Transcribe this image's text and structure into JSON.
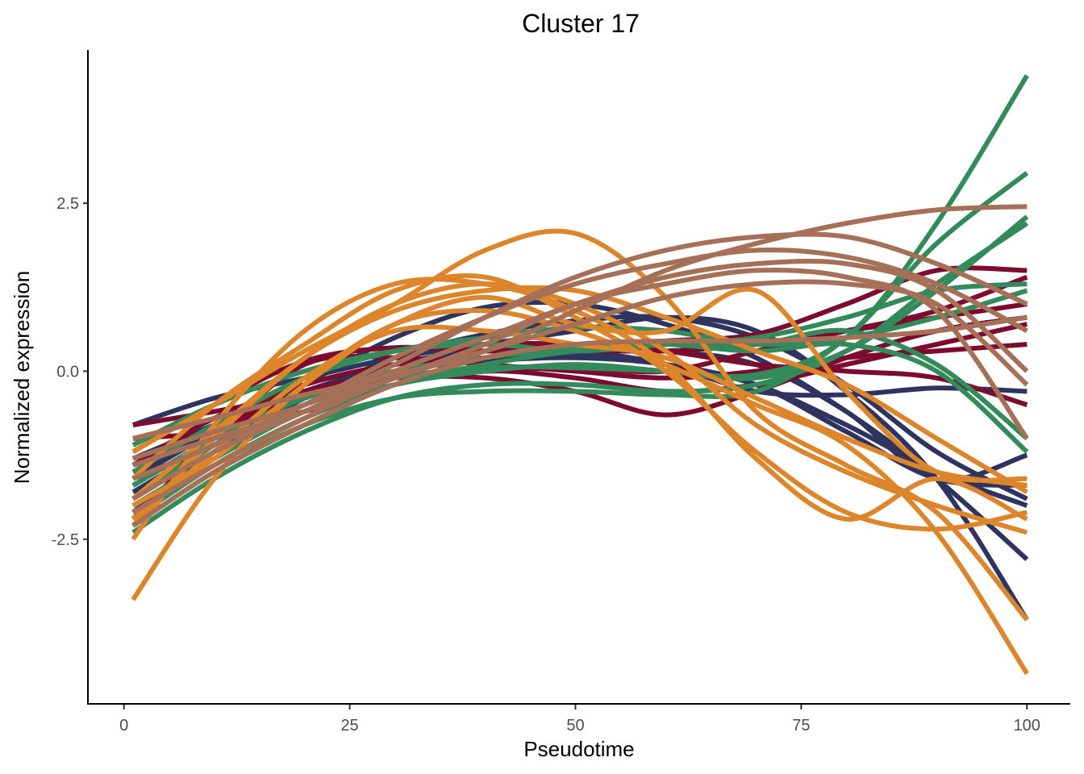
{
  "chart_data": {
    "type": "line",
    "title": "Cluster 17",
    "xlabel": "Pseudotime",
    "ylabel": "Normalized expression",
    "xlim": [
      -3.9,
      104.8
    ],
    "ylim": [
      -4.95,
      4.78
    ],
    "xticks": [
      0,
      25,
      50,
      75,
      100
    ],
    "xtick_labels": [
      "0",
      "25",
      "50",
      "75",
      "100"
    ],
    "yticks": [
      2.5,
      0,
      -2.5
    ],
    "ytick_labels": [
      "2.5",
      "0.0",
      "-2.5"
    ],
    "grid": false,
    "legend": "none",
    "colors": {
      "navy": "#2e3360",
      "crimson": "#7d0a2f",
      "green": "#338a5a",
      "orange": "#dc852b",
      "brown": "#a66f57"
    },
    "series": [
      {
        "color": "navy",
        "x": [
          1,
          10,
          20,
          30,
          40,
          50,
          60,
          70,
          80,
          90,
          100
        ],
        "y": [
          -0.8,
          -0.4,
          -0.1,
          0.2,
          0.4,
          0.6,
          0.8,
          0.6,
          -0.3,
          -1.6,
          -3.7
        ]
      },
      {
        "color": "navy",
        "x": [
          1,
          10,
          20,
          30,
          40,
          50,
          60,
          70,
          80,
          90,
          100
        ],
        "y": [
          -1.6,
          -0.9,
          -0.2,
          0.5,
          0.95,
          1.0,
          0.7,
          0.2,
          -0.6,
          -1.6,
          -2.8
        ]
      },
      {
        "color": "navy",
        "x": [
          1,
          10,
          20,
          30,
          40,
          50,
          60,
          70,
          80,
          90,
          100
        ],
        "y": [
          -1.9,
          -1.1,
          -0.4,
          0.2,
          0.55,
          0.75,
          0.8,
          0.5,
          -0.2,
          -1.2,
          -1.9
        ]
      },
      {
        "color": "navy",
        "x": [
          1,
          10,
          20,
          30,
          40,
          50,
          60,
          70,
          80,
          90,
          100
        ],
        "y": [
          -1.3,
          -0.8,
          -0.3,
          0.1,
          0.3,
          0.4,
          0.3,
          0.1,
          -0.6,
          -1.6,
          -1.25
        ]
      },
      {
        "color": "navy",
        "x": [
          1,
          10,
          20,
          30,
          40,
          50,
          60,
          70,
          80,
          90,
          100
        ],
        "y": [
          -1.5,
          -0.9,
          -0.4,
          0.0,
          0.15,
          0.2,
          0.1,
          -0.2,
          -0.9,
          -1.6,
          -1.7
        ]
      },
      {
        "color": "navy",
        "x": [
          1,
          10,
          20,
          30,
          40,
          50,
          60,
          70,
          80,
          90,
          100
        ],
        "y": [
          -2.1,
          -1.2,
          -0.4,
          0.1,
          0.3,
          0.3,
          0.1,
          -0.3,
          -0.35,
          -0.25,
          -0.3
        ]
      },
      {
        "color": "navy",
        "x": [
          1,
          10,
          20,
          30,
          40,
          50,
          60,
          70,
          80,
          90,
          100
        ],
        "y": [
          -1.8,
          -1.1,
          -0.5,
          0.0,
          0.2,
          0.25,
          0.1,
          -0.2,
          -0.8,
          -1.5,
          -2.0
        ]
      },
      {
        "color": "crimson",
        "x": [
          1,
          10,
          20,
          30,
          40,
          50,
          60,
          70,
          80,
          90,
          100
        ],
        "y": [
          -0.8,
          -0.6,
          -0.35,
          -0.1,
          0.0,
          0.05,
          0.0,
          0.3,
          0.6,
          0.9,
          1.4
        ]
      },
      {
        "color": "crimson",
        "x": [
          1,
          10,
          20,
          30,
          40,
          50,
          60,
          70,
          80,
          90,
          100
        ],
        "y": [
          -1.2,
          -0.5,
          0.15,
          0.35,
          0.3,
          0.35,
          0.45,
          0.55,
          1.0,
          1.5,
          1.5
        ]
      },
      {
        "color": "crimson",
        "x": [
          1,
          10,
          20,
          30,
          40,
          50,
          60,
          70,
          80,
          90,
          100
        ],
        "y": [
          -1.4,
          -0.7,
          -0.2,
          0.1,
          0.2,
          0.3,
          0.3,
          0.4,
          0.6,
          0.8,
          1.0
        ]
      },
      {
        "color": "crimson",
        "x": [
          1,
          10,
          20,
          30,
          40,
          50,
          60,
          70,
          80,
          90,
          100
        ],
        "y": [
          -1.7,
          -1.0,
          -0.3,
          -0.1,
          -0.1,
          -0.3,
          -0.65,
          -0.3,
          0.2,
          0.6,
          0.8
        ]
      },
      {
        "color": "crimson",
        "x": [
          1,
          10,
          20,
          30,
          40,
          50,
          60,
          70,
          80,
          90,
          100
        ],
        "y": [
          -2.2,
          -1.0,
          0.1,
          0.2,
          0.1,
          0.0,
          -0.1,
          0.0,
          0.2,
          0.3,
          0.4
        ]
      },
      {
        "color": "crimson",
        "x": [
          1,
          10,
          20,
          30,
          40,
          50,
          60,
          70,
          80,
          90,
          100
        ],
        "y": [
          -1.0,
          -0.9,
          -0.6,
          -0.2,
          0.0,
          -0.1,
          -0.3,
          -0.2,
          0.1,
          0.4,
          0.7
        ]
      },
      {
        "color": "crimson",
        "x": [
          1,
          10,
          20,
          30,
          40,
          50,
          60,
          70,
          80,
          90,
          100
        ],
        "y": [
          -1.9,
          -1.0,
          -0.1,
          0.3,
          0.4,
          0.4,
          0.3,
          0.1,
          0.0,
          -0.1,
          -0.5
        ]
      },
      {
        "color": "green",
        "x": [
          1,
          10,
          20,
          30,
          40,
          50,
          60,
          70,
          80,
          90,
          100
        ],
        "y": [
          -1.9,
          -1.1,
          -0.5,
          -0.1,
          0.05,
          0.05,
          0.0,
          -0.05,
          0.5,
          2.2,
          4.4
        ]
      },
      {
        "color": "green",
        "x": [
          1,
          10,
          20,
          30,
          40,
          50,
          60,
          70,
          80,
          90,
          100
        ],
        "y": [
          -2.3,
          -1.5,
          -0.8,
          -0.4,
          -0.3,
          -0.3,
          -0.35,
          -0.3,
          0.5,
          1.9,
          2.95
        ]
      },
      {
        "color": "green",
        "x": [
          1,
          10,
          20,
          30,
          40,
          50,
          60,
          70,
          80,
          90,
          100
        ],
        "y": [
          -2.0,
          -1.3,
          -0.6,
          -0.2,
          0.0,
          0.1,
          0.0,
          -0.1,
          0.3,
          1.2,
          2.3
        ]
      },
      {
        "color": "green",
        "x": [
          1,
          10,
          20,
          30,
          40,
          50,
          60,
          70,
          80,
          90,
          100
        ],
        "y": [
          -1.1,
          -0.5,
          0.0,
          0.3,
          0.4,
          0.3,
          0.4,
          0.5,
          0.8,
          1.2,
          1.3
        ]
      },
      {
        "color": "green",
        "x": [
          1,
          10,
          20,
          30,
          40,
          50,
          60,
          70,
          80,
          90,
          100
        ],
        "y": [
          -1.5,
          -0.8,
          -0.1,
          0.3,
          0.5,
          0.65,
          0.6,
          0.4,
          0.5,
          0.8,
          1.2
        ]
      },
      {
        "color": "green",
        "x": [
          1,
          10,
          20,
          30,
          40,
          50,
          60,
          70,
          80,
          90,
          100
        ],
        "y": [
          -2.2,
          -1.4,
          -0.7,
          -0.2,
          0.1,
          0.3,
          0.4,
          0.4,
          0.6,
          0.1,
          -1.0
        ]
      },
      {
        "color": "green",
        "x": [
          1,
          10,
          20,
          30,
          40,
          50,
          60,
          70,
          80,
          90,
          100
        ],
        "y": [
          -1.7,
          -1.0,
          -0.4,
          0.0,
          0.2,
          0.35,
          0.4,
          0.3,
          0.4,
          0.0,
          -1.2
        ]
      },
      {
        "color": "green",
        "x": [
          1,
          10,
          20,
          30,
          40,
          50,
          60,
          70,
          80,
          90,
          100
        ],
        "y": [
          -2.4,
          -1.6,
          -0.9,
          -0.4,
          -0.2,
          -0.2,
          -0.3,
          -0.2,
          0.3,
          1.3,
          2.2
        ]
      },
      {
        "color": "orange",
        "x": [
          1,
          10,
          20,
          30,
          40,
          50,
          60,
          70,
          80,
          90,
          100
        ],
        "y": [
          -3.4,
          -1.6,
          -0.2,
          0.7,
          0.9,
          0.6,
          0.1,
          -0.5,
          -1.1,
          -2.4,
          -4.5
        ]
      },
      {
        "color": "orange",
        "x": [
          1,
          10,
          20,
          30,
          40,
          50,
          60,
          70,
          80,
          90,
          100
        ],
        "y": [
          -2.5,
          -0.8,
          0.6,
          1.3,
          1.3,
          0.9,
          0.1,
          -1.3,
          -2.2,
          -1.6,
          -2.2
        ]
      },
      {
        "color": "orange",
        "x": [
          1,
          10,
          20,
          30,
          40,
          50,
          60,
          70,
          80,
          90,
          100
        ],
        "y": [
          -1.2,
          -0.5,
          0.3,
          1.0,
          1.8,
          2.05,
          1.1,
          -0.6,
          -1.4,
          -2.1,
          -3.7
        ]
      },
      {
        "color": "orange",
        "x": [
          1,
          10,
          20,
          30,
          40,
          50,
          60,
          70,
          80,
          90,
          100
        ],
        "y": [
          -2.3,
          -1.0,
          0.2,
          1.0,
          1.3,
          1.0,
          0.3,
          -0.8,
          -1.5,
          -2.0,
          -2.4
        ]
      },
      {
        "color": "orange",
        "x": [
          1,
          10,
          20,
          30,
          40,
          50,
          60,
          70,
          80,
          90,
          100
        ],
        "y": [
          -2.0,
          -1.3,
          -0.2,
          0.7,
          1.1,
          0.7,
          0.6,
          1.2,
          -0.3,
          -1.5,
          -1.6
        ]
      },
      {
        "color": "orange",
        "x": [
          1,
          10,
          20,
          30,
          40,
          50,
          60,
          70,
          80,
          90,
          100
        ],
        "y": [
          -2.2,
          -1.2,
          -0.1,
          0.6,
          0.6,
          0.4,
          0.2,
          -0.4,
          -1.0,
          -1.5,
          -1.7
        ]
      },
      {
        "color": "orange",
        "x": [
          1,
          10,
          20,
          30,
          40,
          50,
          60,
          70,
          80,
          90,
          100
        ],
        "y": [
          -1.6,
          -0.5,
          0.4,
          1.2,
          1.4,
          0.8,
          0.0,
          -1.2,
          -2.1,
          -2.35,
          -2.1
        ]
      },
      {
        "color": "orange",
        "x": [
          1,
          10,
          20,
          30,
          40,
          50,
          60,
          70,
          80,
          90,
          100
        ],
        "y": [
          -1.9,
          -0.9,
          0.2,
          0.9,
          1.2,
          1.2,
          0.8,
          0.3,
          -0.2,
          -1.0,
          -1.8
        ]
      },
      {
        "color": "brown",
        "x": [
          1,
          10,
          20,
          30,
          40,
          50,
          60,
          70,
          80,
          90,
          100
        ],
        "y": [
          -1.0,
          -0.7,
          -0.35,
          -0.05,
          0.3,
          0.9,
          1.5,
          1.9,
          2.2,
          2.4,
          2.45
        ]
      },
      {
        "color": "brown",
        "x": [
          1,
          10,
          20,
          30,
          40,
          50,
          60,
          70,
          80,
          90,
          100
        ],
        "y": [
          -1.3,
          -0.9,
          -0.5,
          0.1,
          0.8,
          1.4,
          1.8,
          2.0,
          2.0,
          1.6,
          1.0
        ]
      },
      {
        "color": "brown",
        "x": [
          1,
          10,
          20,
          30,
          40,
          50,
          60,
          70,
          80,
          90,
          100
        ],
        "y": [
          -1.6,
          -1.1,
          -0.5,
          0.2,
          0.8,
          1.3,
          1.6,
          1.8,
          1.7,
          1.3,
          0.6
        ]
      },
      {
        "color": "brown",
        "x": [
          1,
          10,
          20,
          30,
          40,
          50,
          60,
          70,
          80,
          90,
          100
        ],
        "y": [
          -1.9,
          -1.2,
          -0.6,
          0.0,
          0.5,
          1.0,
          1.4,
          1.6,
          1.6,
          1.2,
          0.0
        ]
      },
      {
        "color": "brown",
        "x": [
          1,
          10,
          20,
          30,
          40,
          50,
          60,
          70,
          80,
          90,
          100
        ],
        "y": [
          -2.1,
          -1.4,
          -0.7,
          -0.1,
          0.3,
          0.7,
          1.1,
          1.3,
          1.3,
          1.0,
          -0.2
        ]
      },
      {
        "color": "brown",
        "x": [
          1,
          10,
          20,
          30,
          40,
          50,
          60,
          70,
          80,
          90,
          100
        ],
        "y": [
          -1.4,
          -1.0,
          -0.6,
          -0.1,
          0.4,
          1.0,
          1.3,
          1.5,
          1.4,
          0.9,
          -1.0
        ]
      },
      {
        "color": "brown",
        "x": [
          1,
          10,
          20,
          30,
          40,
          50,
          60,
          70,
          80,
          90,
          100
        ],
        "y": [
          -2.3,
          -1.5,
          -0.8,
          -0.2,
          0.2,
          0.4,
          0.45,
          0.45,
          0.5,
          0.6,
          0.8
        ]
      }
    ]
  }
}
